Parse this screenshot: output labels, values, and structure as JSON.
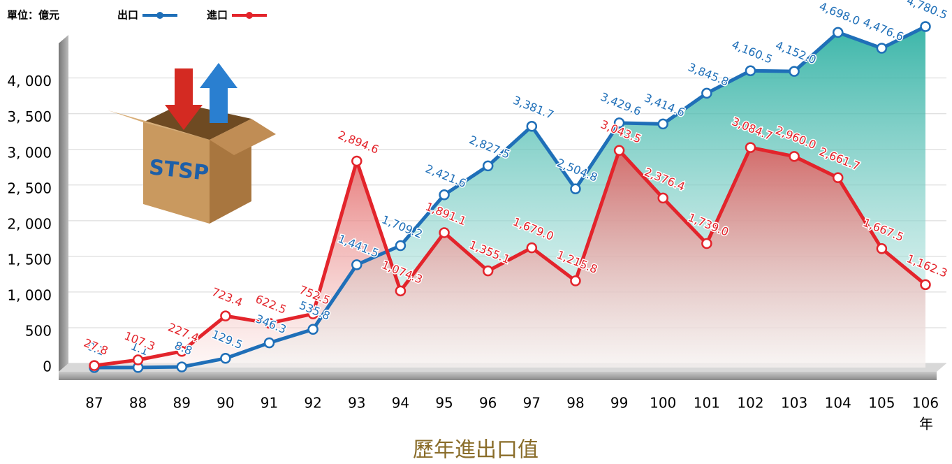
{
  "chart_data": {
    "type": "area-line",
    "title": "歷年進出口值",
    "unit_label": "單位：億元",
    "x_unit": "年",
    "icon_text": "STSP",
    "categories": [
      "87",
      "88",
      "89",
      "90",
      "91",
      "92",
      "93",
      "94",
      "95",
      "96",
      "97",
      "98",
      "99",
      "100",
      "101",
      "102",
      "103",
      "104",
      "105",
      "106"
    ],
    "series": [
      {
        "name": "出口",
        "color": "#1f6fb8",
        "fill_top": "#1aa99a",
        "fill_bottom": "#e8f6f5",
        "values": [
          0.1,
          1.1,
          8.8,
          129.5,
          346.3,
          535.8,
          1441.5,
          1709.2,
          2421.6,
          2827.5,
          3381.7,
          2504.8,
          3429.6,
          3414.6,
          3845.8,
          4160.5,
          4152.0,
          4698.0,
          4476.6,
          4780.5
        ],
        "value_labels": [
          "0.1",
          "1.1",
          "8.8",
          "129.5",
          "346.3",
          "535.8",
          "1,441.5",
          "1,709.2",
          "2,421.6",
          "2,827.5",
          "3,381.7",
          "2,504.8",
          "3,429.6",
          "3,414.6",
          "3,845.8",
          "4,160.5",
          "4,152.0",
          "4,698.0",
          "4,476.6",
          "4,780.5"
        ]
      },
      {
        "name": "進口",
        "color": "#e3242b",
        "fill_top": "#e05a5a",
        "fill_bottom": "#fdf0ee",
        "values": [
          27.8,
          107.3,
          227.4,
          723.4,
          622.5,
          752.5,
          2894.6,
          1074.3,
          1891.1,
          1355.1,
          1679.0,
          1215.8,
          3043.5,
          2376.4,
          1739.0,
          3084.7,
          2960.0,
          2661.7,
          1667.5,
          1162.3
        ],
        "value_labels": [
          "27.8",
          "107.3",
          "227.4",
          "723.4",
          "622.5",
          "752.5",
          "2,894.6",
          "1,074.3",
          "1,891.1",
          "1,355.1",
          "1,679.0",
          "1,215.8",
          "3,043.5",
          "2,376.4",
          "1,739.0",
          "3,084.7",
          "2,960.0",
          "2,661.7",
          "1,667.5",
          "1,162.3"
        ]
      }
    ],
    "ylim": [
      0,
      4800
    ],
    "yticks": [
      0,
      500,
      {
        "value": 1000,
        "label": "1, 000"
      },
      {
        "value": 1500,
        "label": "1, 500"
      },
      {
        "value": 2000,
        "label": "2, 000"
      },
      {
        "value": 2500,
        "label": "2, 500"
      },
      {
        "value": 3000,
        "label": "3, 000"
      },
      {
        "value": 3500,
        "label": "3, 500"
      },
      {
        "value": 4000,
        "label": "4, 000"
      }
    ],
    "grid": true
  }
}
